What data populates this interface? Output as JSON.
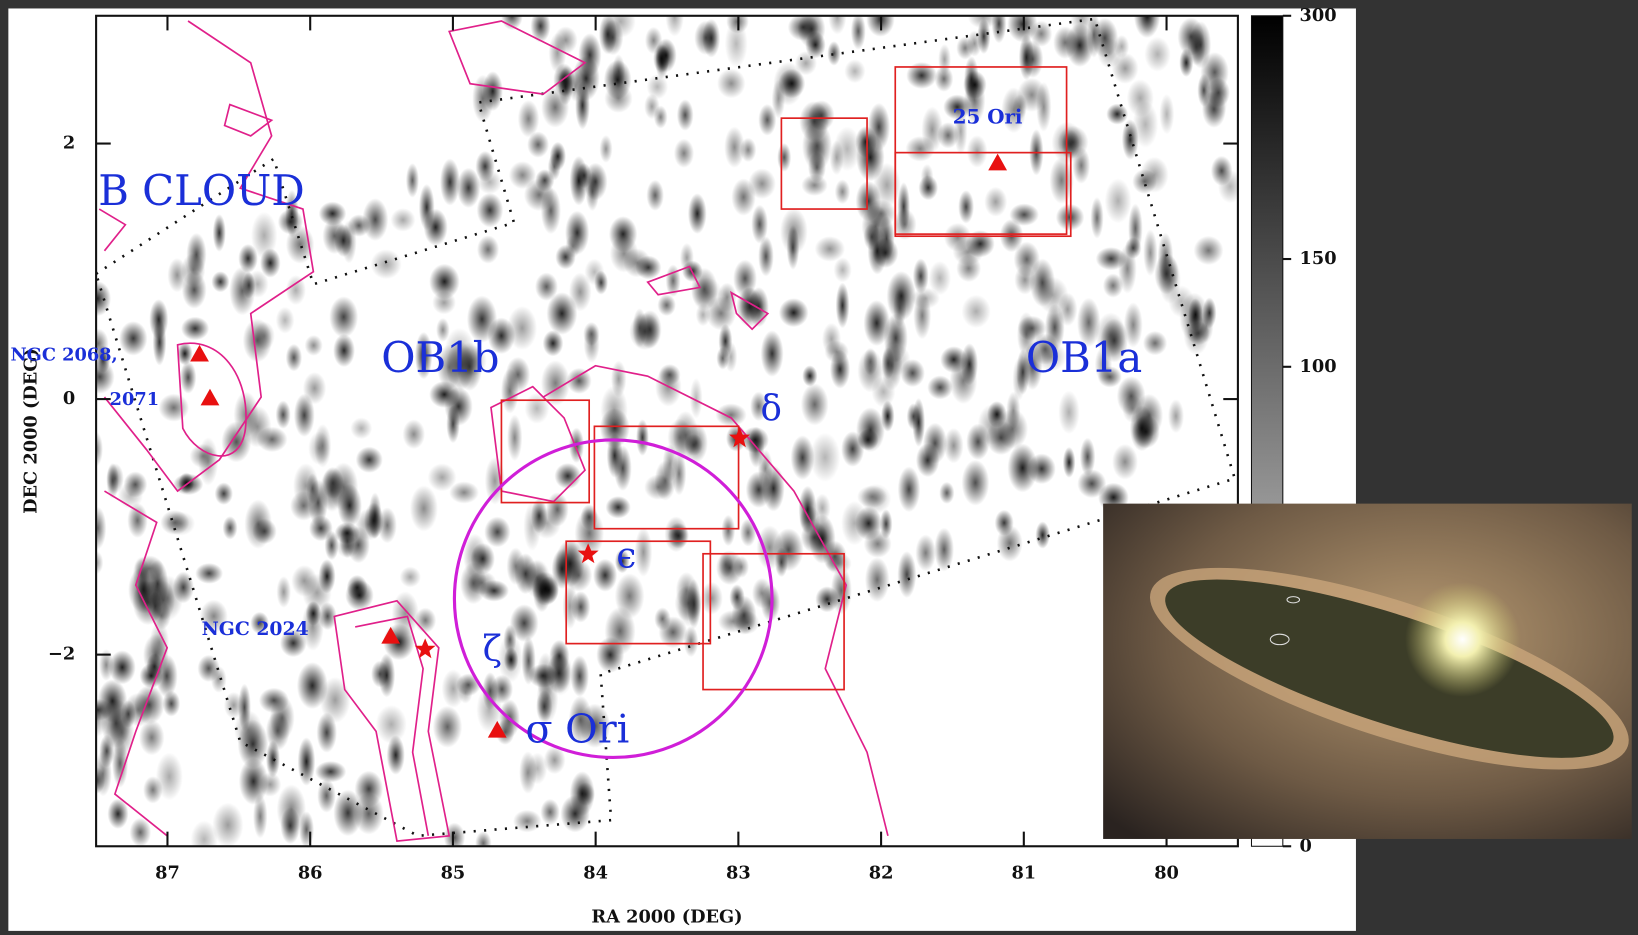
{
  "x_axis": {
    "title": "RA 2000 (DEG)",
    "lim": [
      87.5,
      79.5
    ],
    "ticks": [
      87,
      86,
      85,
      84,
      83,
      82,
      81,
      80
    ]
  },
  "y_axis": {
    "title": "DEC 2000 (DEG)",
    "lim": [
      -3.5,
      3
    ],
    "ticks": [
      2,
      0,
      {
        "value": -2,
        "label": "−2"
      }
    ]
  },
  "colorbar": {
    "lim": [
      0,
      300
    ],
    "ticks": [
      0,
      100,
      150,
      300
    ],
    "scale": "sqrt"
  },
  "annotations": [
    "B CLOUD",
    "NGC 2068,",
    "2071",
    "OB1b",
    "OB1a",
    "25 Ori",
    "δ",
    "ϵ",
    "NGC 2024",
    "ζ",
    "σ Ori"
  ]
}
